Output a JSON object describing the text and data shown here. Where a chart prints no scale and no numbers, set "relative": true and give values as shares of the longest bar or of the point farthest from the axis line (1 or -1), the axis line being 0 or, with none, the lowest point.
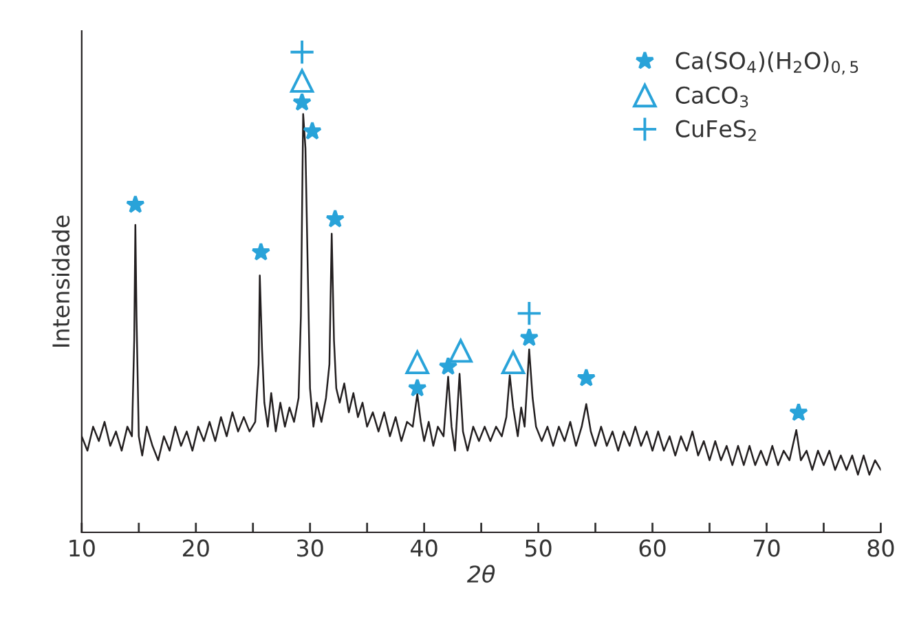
{
  "chart_data": {
    "type": "line",
    "relative": true,
    "xlabel": "2θ",
    "ylabel": "Intensidade",
    "xlim": [
      10,
      80
    ],
    "xticks": [
      10,
      {
        "value": 15,
        "label": null
      },
      20,
      {
        "value": 25,
        "label": null
      },
      30,
      {
        "value": 35,
        "label": null
      },
      40,
      {
        "value": 45,
        "label": null
      },
      50,
      {
        "value": 55,
        "label": null
      },
      60,
      {
        "value": 65,
        "label": null
      },
      70,
      {
        "value": 75,
        "label": null
      },
      80
    ],
    "grid": false,
    "legend": "top right",
    "series": [
      {
        "color": "#231f20",
        "marker": "none",
        "x": [
          10.0,
          10.5,
          11,
          11.5,
          12,
          12.5,
          13,
          13.5,
          14,
          14.4,
          14.6,
          14.7,
          14.8,
          15.0,
          15.3,
          15.7,
          16.2,
          16.7,
          17.2,
          17.7,
          18.2,
          18.7,
          19.2,
          19.7,
          20.2,
          20.7,
          21.2,
          21.7,
          22.2,
          22.7,
          23.2,
          23.7,
          24.2,
          24.7,
          25.2,
          25.5,
          25.6,
          25.8,
          26.0,
          26.3,
          26.6,
          27.0,
          27.4,
          27.8,
          28.2,
          28.6,
          29.0,
          29.2,
          29.4,
          29.6,
          29.8,
          30.0,
          30.3,
          30.6,
          31.0,
          31.4,
          31.7,
          31.9,
          32.1,
          32.3,
          32.6,
          33.0,
          33.4,
          33.8,
          34.2,
          34.6,
          35.0,
          35.5,
          36.0,
          36.5,
          37.0,
          37.5,
          38.0,
          38.5,
          39.0,
          39.4,
          39.7,
          40.0,
          40.4,
          40.8,
          41.2,
          41.7,
          42.1,
          42.4,
          42.7,
          43.1,
          43.4,
          43.8,
          44.3,
          44.8,
          45.3,
          45.8,
          46.3,
          46.8,
          47.2,
          47.5,
          47.8,
          48.2,
          48.5,
          48.8,
          49.2,
          49.5,
          49.8,
          50.3,
          50.8,
          51.3,
          51.8,
          52.3,
          52.8,
          53.3,
          53.8,
          54.2,
          54.6,
          55.0,
          55.5,
          56.0,
          56.5,
          57.0,
          57.5,
          58.0,
          58.5,
          59.0,
          59.5,
          60.0,
          60.5,
          61.0,
          61.5,
          62.0,
          62.5,
          63.0,
          63.5,
          64.0,
          64.5,
          65.0,
          65.5,
          66.0,
          66.5,
          67.0,
          67.5,
          68.0,
          68.5,
          69.0,
          69.5,
          70.0,
          70.5,
          71.0,
          71.5,
          72.0,
          72.6,
          73.0,
          73.5,
          74.0,
          74.5,
          75.0,
          75.5,
          76.0,
          76.5,
          77.0,
          77.5,
          78.0,
          78.5,
          79.0,
          79.5,
          80.0
        ],
        "values": [
          0.2,
          0.17,
          0.22,
          0.19,
          0.23,
          0.18,
          0.21,
          0.17,
          0.22,
          0.2,
          0.4,
          0.64,
          0.45,
          0.2,
          0.16,
          0.22,
          0.18,
          0.15,
          0.2,
          0.17,
          0.22,
          0.18,
          0.21,
          0.17,
          0.22,
          0.19,
          0.23,
          0.19,
          0.24,
          0.2,
          0.25,
          0.21,
          0.24,
          0.21,
          0.23,
          0.35,
          0.535,
          0.38,
          0.27,
          0.22,
          0.29,
          0.21,
          0.27,
          0.22,
          0.26,
          0.23,
          0.28,
          0.45,
          0.871,
          0.8,
          0.55,
          0.3,
          0.22,
          0.27,
          0.23,
          0.28,
          0.35,
          0.622,
          0.4,
          0.3,
          0.27,
          0.31,
          0.25,
          0.29,
          0.24,
          0.27,
          0.22,
          0.25,
          0.21,
          0.25,
          0.2,
          0.24,
          0.19,
          0.23,
          0.22,
          0.288,
          0.23,
          0.19,
          0.23,
          0.18,
          0.22,
          0.2,
          0.324,
          0.22,
          0.17,
          0.33,
          0.21,
          0.17,
          0.22,
          0.19,
          0.22,
          0.19,
          0.22,
          0.2,
          0.24,
          0.327,
          0.26,
          0.2,
          0.26,
          0.22,
          0.381,
          0.28,
          0.22,
          0.19,
          0.22,
          0.18,
          0.22,
          0.19,
          0.23,
          0.18,
          0.22,
          0.267,
          0.21,
          0.18,
          0.22,
          0.18,
          0.21,
          0.17,
          0.21,
          0.18,
          0.22,
          0.18,
          0.21,
          0.17,
          0.21,
          0.17,
          0.2,
          0.16,
          0.2,
          0.17,
          0.21,
          0.16,
          0.19,
          0.15,
          0.19,
          0.15,
          0.18,
          0.14,
          0.18,
          0.14,
          0.18,
          0.14,
          0.17,
          0.14,
          0.18,
          0.14,
          0.17,
          0.15,
          0.213,
          0.15,
          0.17,
          0.13,
          0.17,
          0.14,
          0.17,
          0.13,
          0.16,
          0.13,
          0.16,
          0.12,
          0.16,
          0.12,
          0.15,
          0.13
        ]
      },
      {
        "type": "scatter",
        "name": "Ca(SO$_{4}$)(H$_{2}$O)$_{0,5}$",
        "color": "#29a3d9",
        "marker": "star",
        "x": [
          14.7,
          25.7,
          29.3,
          30.2,
          32.2,
          39.4,
          42.1,
          49.2,
          54.2,
          72.8
        ],
        "values": [
          0.682,
          0.583,
          0.895,
          0.835,
          0.652,
          0.3,
          0.345,
          0.405,
          0.321,
          0.249
        ]
      },
      {
        "type": "scatter",
        "name": "CaCO$_{3}$",
        "color": "#29a3d9",
        "marker": "triangle",
        "x": [
          29.3,
          39.4,
          43.2,
          47.8
        ],
        "values": [
          0.94,
          0.354,
          0.378,
          0.354
        ]
      },
      {
        "type": "scatter",
        "name": "CuFeS$_{2}$",
        "color": "#29a3d9",
        "marker": "cross",
        "x": [
          29.3,
          49.2
        ],
        "values": [
          1.0,
          0.456
        ]
      }
    ]
  }
}
